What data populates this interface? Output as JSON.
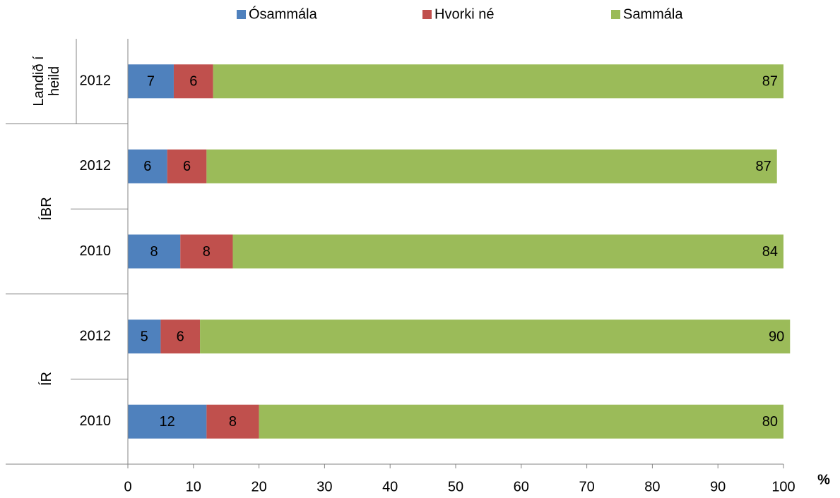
{
  "chart_data": {
    "type": "stacked-bar-horizontal",
    "groups": [
      {
        "name": "Landið í heild",
        "categories": [
          "2012"
        ]
      },
      {
        "name": "ÍBR",
        "categories": [
          "2012",
          "2010"
        ]
      },
      {
        "name": "ÍR",
        "categories": [
          "2012",
          "2010"
        ]
      }
    ],
    "series": [
      {
        "name": "Ósammála",
        "color": "#4f81bd",
        "values": [
          7,
          6,
          8,
          5,
          12
        ]
      },
      {
        "name": "Hvorki né",
        "color": "#c0504d",
        "values": [
          6,
          6,
          8,
          6,
          8
        ]
      },
      {
        "name": "Sammála",
        "color": "#9bbb59",
        "values": [
          87,
          87,
          84,
          90,
          80
        ]
      }
    ],
    "x_label": "%",
    "xlim": [
      0,
      100
    ],
    "xticks": [
      0,
      10,
      20,
      30,
      40,
      50,
      60,
      70,
      80,
      90,
      100
    ],
    "legend": "top"
  }
}
